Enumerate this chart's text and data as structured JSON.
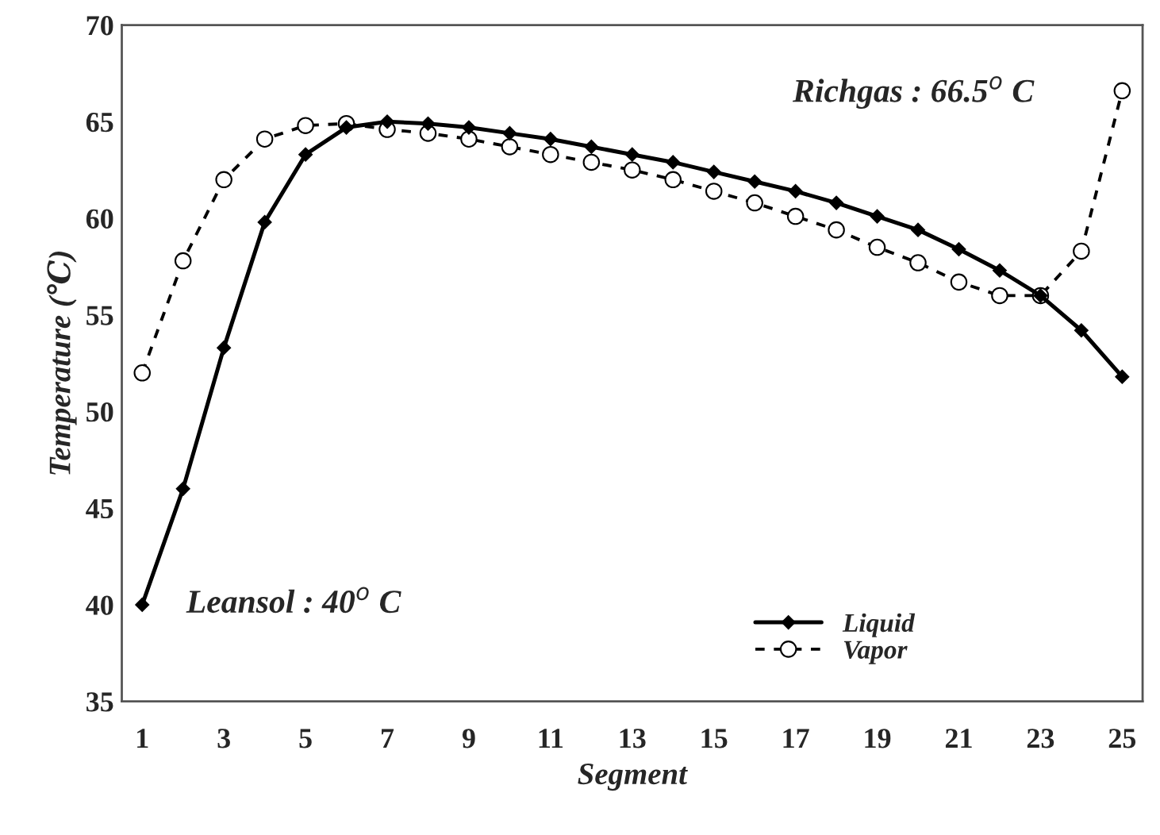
{
  "chart_data": {
    "type": "line",
    "xlabel": "Segment",
    "ylabel": "Temperature (℃)",
    "x": [
      1,
      2,
      3,
      4,
      5,
      6,
      7,
      8,
      9,
      10,
      11,
      12,
      13,
      14,
      15,
      16,
      17,
      18,
      19,
      20,
      21,
      22,
      23,
      24,
      25
    ],
    "xlim": [
      0.5,
      25.5
    ],
    "xticks": [
      1,
      3,
      5,
      7,
      9,
      11,
      13,
      15,
      17,
      19,
      21,
      23,
      25
    ],
    "ylim": [
      35,
      70
    ],
    "yticks": [
      35,
      40,
      45,
      50,
      55,
      60,
      65,
      70
    ],
    "series": [
      {
        "name": "Liquid",
        "color": "#000000",
        "marker": "diamond",
        "line_style": "solid",
        "values": [
          40,
          46,
          53.3,
          59.8,
          63.3,
          64.7,
          65.0,
          64.9,
          64.7,
          64.4,
          64.1,
          63.7,
          63.3,
          62.9,
          62.4,
          61.9,
          61.4,
          60.8,
          60.1,
          59.4,
          58.4,
          57.3,
          56.0,
          54.2,
          51.8
        ]
      },
      {
        "name": "Vapor",
        "color": "#000000",
        "marker": "circle",
        "line_style": "dashed",
        "values": [
          52,
          57.8,
          62,
          64.1,
          64.8,
          64.9,
          64.6,
          64.4,
          64.1,
          63.7,
          63.3,
          62.9,
          62.5,
          62.0,
          61.4,
          60.8,
          60.1,
          59.4,
          58.5,
          57.7,
          56.7,
          56.0,
          56.0,
          58.3,
          66.6
        ]
      }
    ],
    "annotations": [
      {
        "text": "Leansol : 40$^{o}$ C",
        "x": 1,
        "y": 40
      },
      {
        "text": "Richgas : 66.5$^{o}$ C",
        "x": 25,
        "y": 66.5
      }
    ],
    "legend": "bottom right",
    "grid": false
  }
}
